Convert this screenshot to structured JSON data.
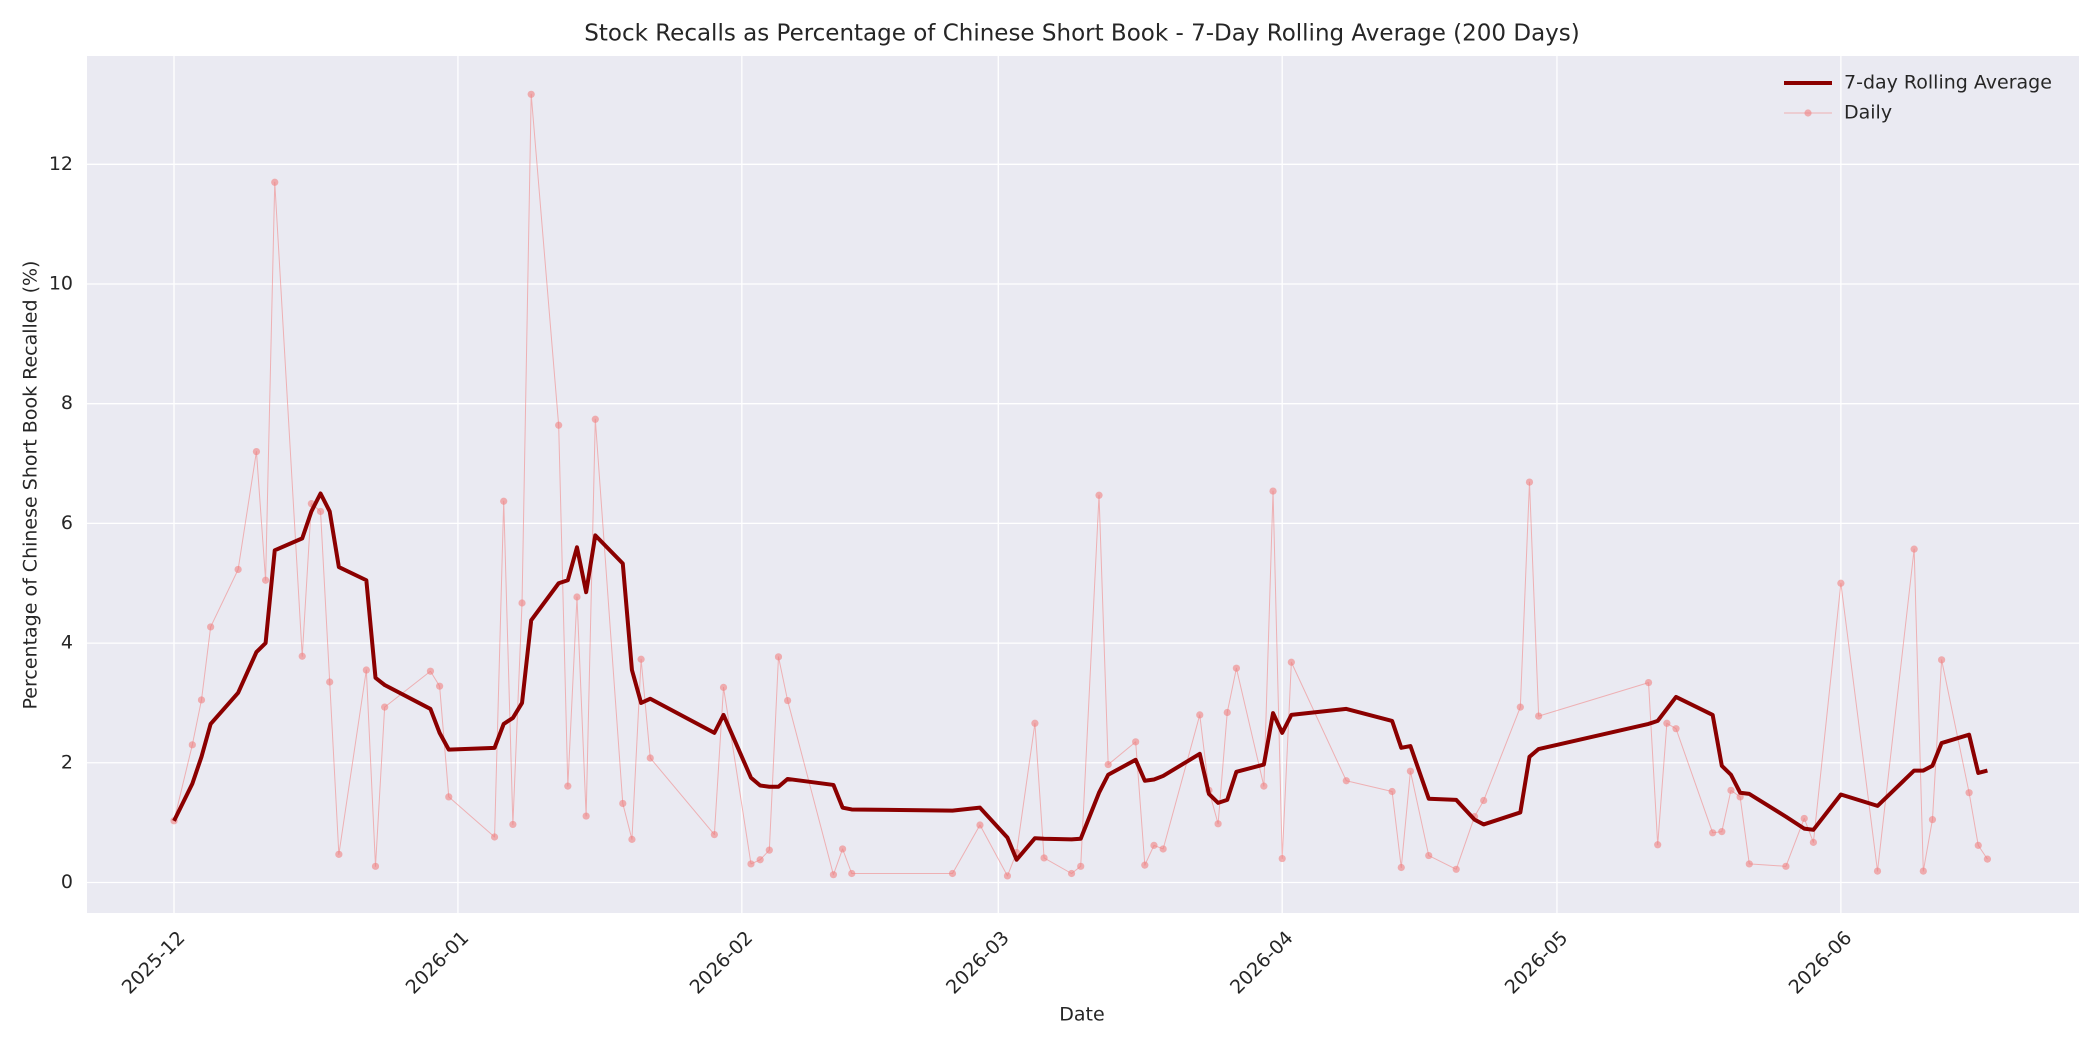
{
  "chart_data": {
    "type": "line",
    "title": "Stock Recalls as Percentage of Chinese Short Book - 7-Day Rolling Average (200 Days)",
    "x_label": "Date",
    "y_label": "Percentage of Chinese Short Book Recalled (%)",
    "x": [
      0,
      2,
      3,
      4,
      7,
      9,
      10,
      11,
      14,
      15,
      16,
      17,
      18,
      21,
      22,
      23,
      28,
      29,
      30,
      35,
      36,
      37,
      38,
      39,
      42,
      43,
      44,
      45,
      46,
      49,
      50,
      51,
      52,
      59,
      60,
      63,
      64,
      65,
      66,
      67,
      72,
      73,
      74,
      85,
      88,
      91,
      92,
      94,
      95,
      98,
      99,
      101,
      102,
      105,
      106,
      107,
      108,
      112,
      113,
      114,
      115,
      116,
      119,
      120,
      121,
      122,
      128,
      133,
      134,
      135,
      137,
      140,
      142,
      143,
      147,
      148,
      149,
      161,
      162,
      163,
      164,
      168,
      169,
      170,
      171,
      172,
      176,
      178,
      179,
      182,
      186,
      190,
      191,
      192,
      193,
      196,
      197,
      198
    ],
    "series": [
      {
        "name": "7-day Rolling Average",
        "color": "#8b0000",
        "line_width": 4,
        "markers": false,
        "values": [
          1.03,
          1.65,
          2.1,
          2.65,
          3.17,
          3.85,
          4.0,
          5.55,
          5.75,
          6.2,
          6.5,
          6.2,
          5.27,
          5.05,
          3.42,
          3.3,
          2.9,
          2.5,
          2.22,
          2.25,
          2.65,
          2.75,
          3.0,
          4.38,
          5.0,
          5.05,
          5.6,
          4.85,
          5.8,
          5.33,
          3.55,
          3.0,
          3.07,
          2.5,
          2.8,
          1.75,
          1.62,
          1.6,
          1.6,
          1.73,
          1.63,
          1.25,
          1.22,
          1.2,
          1.25,
          0.75,
          0.38,
          0.74,
          0.73,
          0.72,
          0.73,
          1.5,
          1.8,
          2.05,
          1.7,
          1.72,
          1.78,
          2.15,
          1.48,
          1.33,
          1.38,
          1.85,
          1.97,
          2.83,
          2.5,
          2.8,
          2.9,
          2.7,
          2.25,
          2.28,
          1.4,
          1.38,
          1.05,
          0.97,
          1.17,
          2.1,
          2.23,
          2.65,
          2.7,
          2.9,
          3.1,
          2.8,
          1.95,
          1.8,
          1.5,
          1.48,
          1.1,
          0.9,
          0.88,
          1.47,
          1.28,
          1.87,
          1.87,
          1.95,
          2.33,
          2.47,
          1.83,
          1.87
        ]
      },
      {
        "name": "Daily",
        "color": "#f08080",
        "line_width": 1,
        "markers": true,
        "values": [
          1.03,
          2.3,
          3.05,
          4.27,
          5.23,
          7.2,
          5.05,
          11.7,
          3.78,
          6.33,
          6.2,
          3.35,
          0.47,
          3.55,
          0.27,
          2.93,
          3.53,
          3.28,
          1.43,
          0.76,
          6.37,
          0.97,
          4.67,
          13.17,
          7.64,
          1.61,
          4.77,
          1.11,
          7.74,
          1.32,
          0.72,
          3.73,
          2.08,
          0.8,
          3.26,
          0.31,
          0.38,
          0.54,
          3.77,
          3.04,
          0.13,
          0.56,
          0.15,
          0.15,
          0.96,
          0.11,
          0.5,
          2.66,
          0.41,
          0.15,
          0.27,
          6.47,
          1.97,
          2.35,
          0.29,
          0.62,
          0.56,
          2.8,
          1.54,
          0.98,
          2.84,
          3.58,
          1.61,
          6.54,
          0.4,
          3.68,
          1.7,
          1.52,
          0.25,
          1.86,
          0.45,
          0.22,
          1.1,
          1.37,
          2.93,
          6.69,
          2.78,
          3.34,
          0.63,
          2.66,
          2.57,
          0.83,
          0.85,
          1.54,
          1.43,
          0.31,
          0.27,
          1.07,
          0.67,
          5.0,
          0.19,
          5.57,
          0.19,
          1.05,
          3.72,
          1.5,
          0.62,
          0.39
        ]
      }
    ],
    "xlim": [
      -9.5,
      208
    ],
    "xticks": [
      {
        "value": 0,
        "label": "2025-12"
      },
      {
        "value": 31,
        "label": "2026-01"
      },
      {
        "value": 62,
        "label": "2026-02"
      },
      {
        "value": 90,
        "label": "2026-03"
      },
      {
        "value": 121,
        "label": "2026-04"
      },
      {
        "value": 151,
        "label": "2026-05"
      },
      {
        "value": 182,
        "label": "2026-06"
      }
    ],
    "ylim": [
      -0.51,
      13.81
    ],
    "yticks": [
      0,
      2,
      4,
      6,
      8,
      10,
      12
    ],
    "grid": true,
    "legend": "upper right"
  }
}
